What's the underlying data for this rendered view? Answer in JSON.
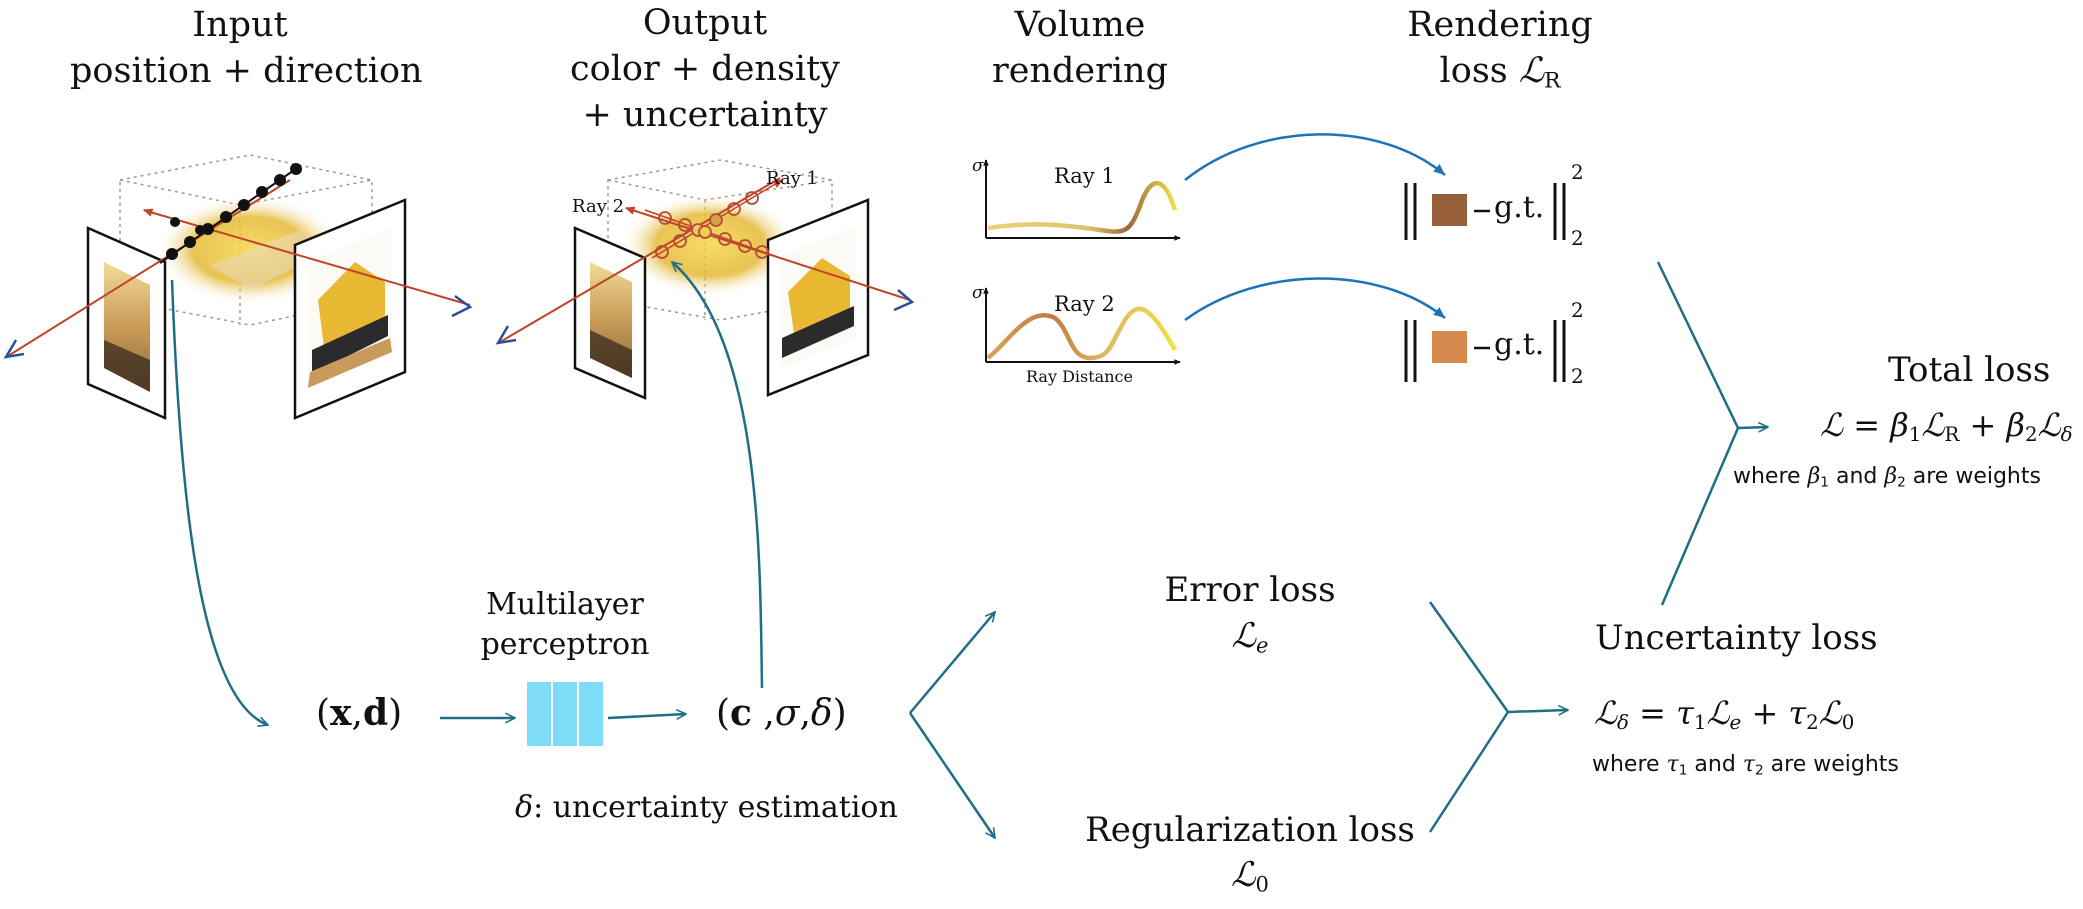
{
  "headers": {
    "input": [
      "Input",
      "position + direction"
    ],
    "output": [
      "Output",
      "color + density",
      "+ uncertainty"
    ],
    "volume": [
      "Volume",
      "rendering"
    ],
    "rendering_loss": [
      "Rendering",
      "loss"
    ],
    "rendering_loss_symbol": "ℒ",
    "rendering_loss_sub": "R"
  },
  "scene": {
    "ray1_label": "Ray 1",
    "ray2_label": "Ray 2"
  },
  "plots": {
    "sigma": "σ",
    "ray1": "Ray 1",
    "ray2": "Ray 2",
    "xlabel": "Ray Distance"
  },
  "norms": {
    "gt": "g.t.",
    "sup": "2",
    "sub": "2",
    "swatch1_color": "#97603b",
    "swatch2_color": "#d68a4e"
  },
  "pipeline": {
    "input_vars": [
      "x",
      "d"
    ],
    "mlp": [
      "Multilayer",
      "perceptron"
    ],
    "mlp_color": "#7fdcf8",
    "output_vars": [
      "c",
      "σ",
      "δ"
    ],
    "delta_note_symbol": "δ",
    "delta_note_text": ": uncertainty estimation"
  },
  "losses": {
    "error": {
      "label": "Error loss",
      "sym": "ℒ",
      "sub": "e"
    },
    "reg": {
      "label": "Regularization loss",
      "sym": "ℒ",
      "sub": "0"
    },
    "uncertainty": {
      "label": "Uncertainty loss",
      "lhs": "ℒ",
      "lhs_sub": "δ",
      "t1": "τ",
      "t1_sub": "1",
      "l1": "ℒ",
      "l1_sub": "e",
      "t2": "τ",
      "t2_sub": "2",
      "l2": "ℒ",
      "l2_sub": "0",
      "where": [
        "where",
        "and",
        "are weights"
      ],
      "w1": "τ",
      "w1_sub": "1",
      "w2": "τ",
      "w2_sub": "2"
    },
    "total": {
      "label": "Total loss",
      "lhs": "ℒ",
      "b1": "β",
      "b1_sub": "1",
      "l1": "ℒ",
      "l1_sub": "R",
      "b2": "β",
      "b2_sub": "2",
      "l2": "ℒ",
      "l2_sub": "δ",
      "where": [
        "where",
        "and",
        "are weights"
      ],
      "w1": "β",
      "w1_sub": "1",
      "w2": "β",
      "w2_sub": "2"
    }
  },
  "colors": {
    "arrow": "#1f6e86",
    "blue_arrow": "#1b73b8",
    "ray_red": "#c0442a",
    "axis_blue": "#2c4f9a"
  }
}
